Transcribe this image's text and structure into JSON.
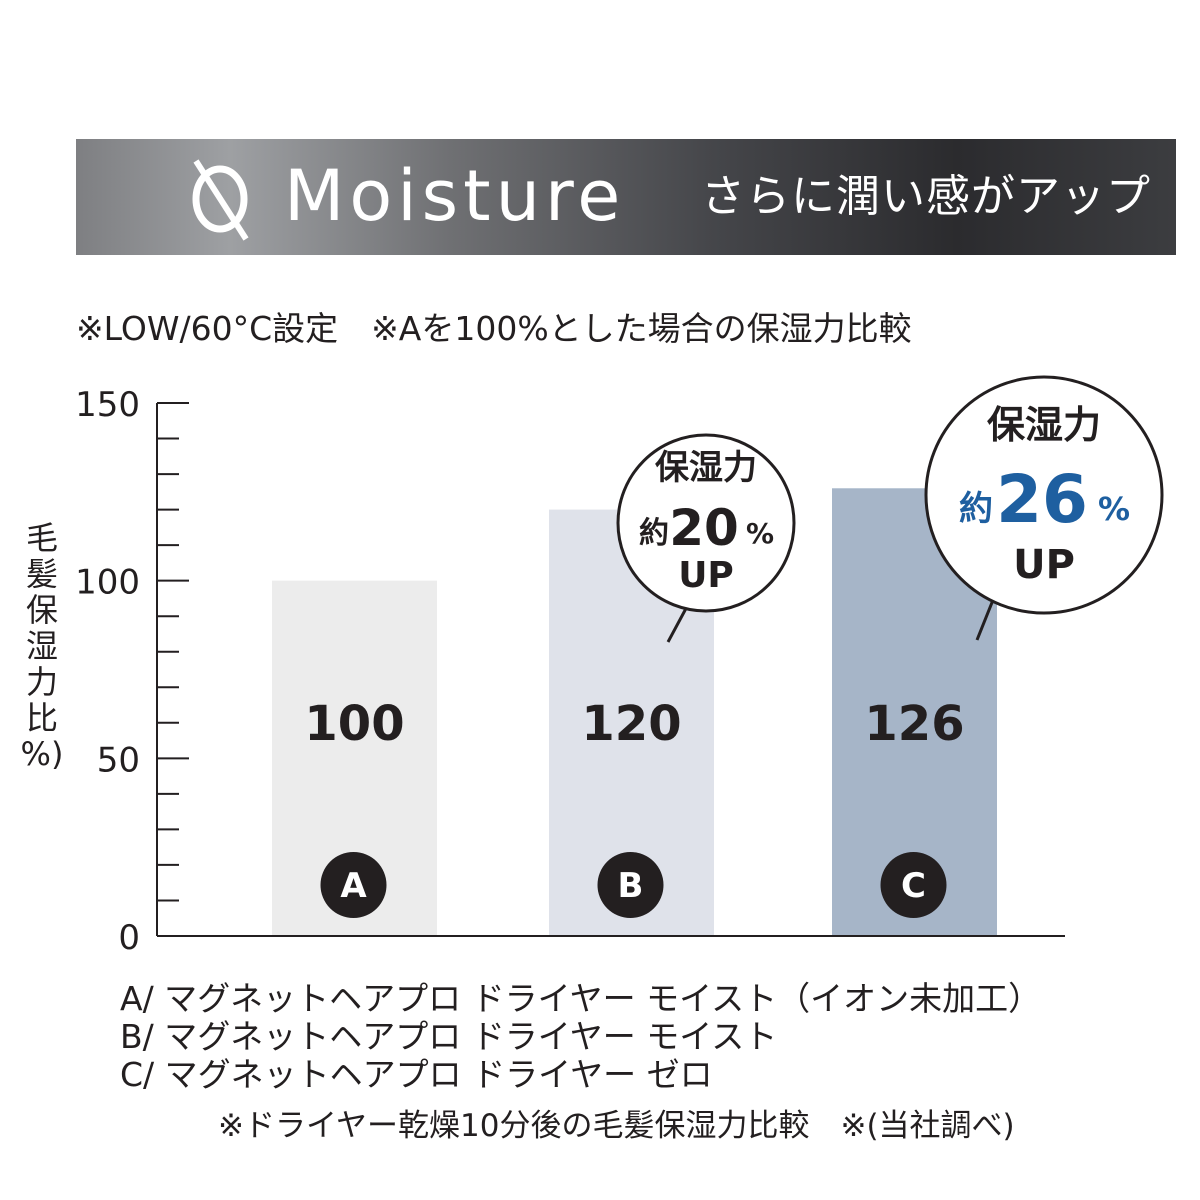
{
  "banner": {
    "title": "Moisture",
    "tagline": "さらに潤い感がアップ",
    "logo_icon": "zero-ion-icon"
  },
  "note_top": "※LOW/60°C設定　※Aを100%とした場合の保湿力比較",
  "legend": [
    "A/ マグネットヘアプロ ドライヤー モイスト（イオン未加工）",
    "B/ マグネットヘアプロ ドライヤー モイスト",
    "C/ マグネットヘアプロ ドライヤー ゼロ"
  ],
  "footnote": "※ドライヤー乾燥10分後の毛髪保湿力比較　※(当社調べ)",
  "colors": {
    "bar_a": "#ececec",
    "bar_b": "#dfe2ea",
    "bar_c": "#a6b5c8",
    "accent_blue": "#1e5fa0",
    "text": "#231f20"
  },
  "chart_data": {
    "type": "bar",
    "ylabel": [
      "毛",
      "髪",
      "保",
      "湿",
      "力",
      "比",
      "%)"
    ],
    "ylim": [
      0,
      150
    ],
    "yticks": [
      0,
      50,
      100,
      150
    ],
    "categories": [
      "A",
      "B",
      "C"
    ],
    "values": [
      100,
      120,
      126
    ],
    "value_labels": [
      "100",
      "120",
      "126"
    ],
    "callouts": [
      {
        "category": "B",
        "line1": "保湿力",
        "prefix": "約",
        "value": "20",
        "unit": "%",
        "suffix": "UP"
      },
      {
        "category": "C",
        "line1": "保湿力",
        "prefix": "約",
        "value": "26",
        "unit": "%",
        "suffix": "UP"
      }
    ]
  }
}
